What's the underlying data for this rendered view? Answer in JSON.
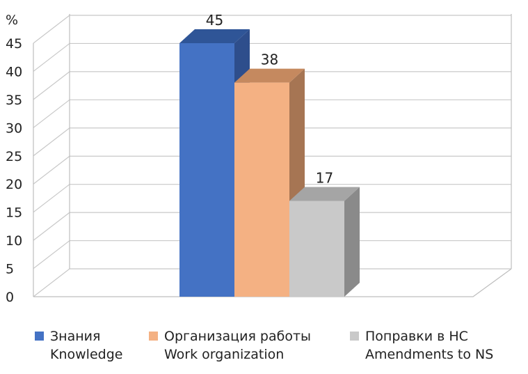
{
  "chart_data": {
    "type": "bar",
    "style": "3d-column",
    "unit_label": "%",
    "ylim": [
      0,
      45
    ],
    "yticks": [
      0,
      5,
      10,
      15,
      20,
      25,
      30,
      35,
      40,
      45
    ],
    "grid": true,
    "legend_position": "bottom",
    "series": [
      {
        "name_ru": "Знания",
        "name_en": "Knowledge",
        "value": 45,
        "value_label": "45",
        "color": "#4472c4",
        "side": "#2e4e8c",
        "top": "#2f5597"
      },
      {
        "name_ru": "Организация работы",
        "name_en": "Work organization",
        "value": 38,
        "value_label": "38",
        "color": "#f4b183",
        "side": "#a67553",
        "top": "#c5895f"
      },
      {
        "name_ru": "Поправки в НС",
        "name_en": "Amendments to NS",
        "value": 17,
        "value_label": "17",
        "color": "#c9c9c9",
        "side": "#8a8a8a",
        "top": "#a5a5a5"
      }
    ]
  }
}
